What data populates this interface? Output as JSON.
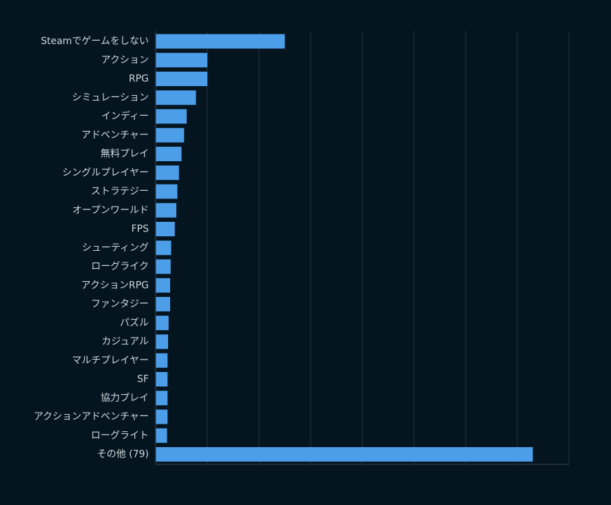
{
  "colors": {
    "background": "#051520",
    "bar": "#4d9ee8",
    "grid": "#26343d",
    "axis": "#3a4751",
    "label": "#cfd6dc"
  },
  "chart_data": {
    "type": "bar",
    "orientation": "horizontal",
    "title": "",
    "xlabel": "",
    "ylabel": "",
    "grid": true,
    "legend": false,
    "xlim": [
      0,
      8
    ],
    "categories": [
      "Steamでゲームをしない",
      "アクション",
      "RPG",
      "シミュレーション",
      "インディー",
      "アドベンチャー",
      "無料プレイ",
      "シングルプレイヤー",
      "ストラテジー",
      "オープンワールド",
      "FPS",
      "シューティング",
      "ローグライク",
      "アクションRPG",
      "ファンタジー",
      "パズル",
      "カジュアル",
      "マルチプレイヤー",
      "SF",
      "協力プレイ",
      "アクションアドベンチャー",
      "ローグライト",
      "その他 (79)"
    ],
    "values": [
      2.5,
      1.0,
      1.0,
      0.78,
      0.6,
      0.55,
      0.5,
      0.45,
      0.42,
      0.4,
      0.37,
      0.3,
      0.29,
      0.28,
      0.28,
      0.25,
      0.24,
      0.23,
      0.23,
      0.23,
      0.23,
      0.22,
      7.3
    ]
  }
}
